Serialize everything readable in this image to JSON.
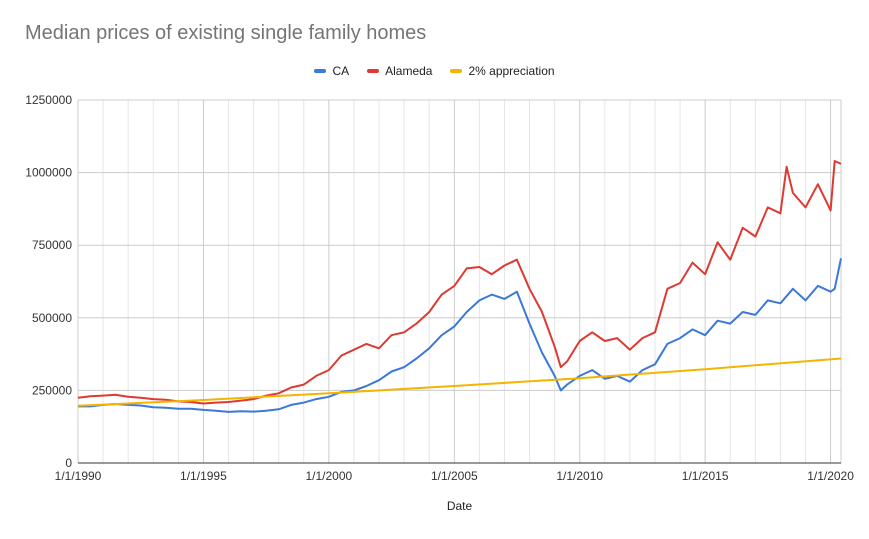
{
  "chart_data": {
    "type": "line",
    "title": "Median prices of existing single family homes",
    "xlabel": "Date",
    "ylabel": "",
    "x_range": [
      "1990-01-01",
      "2020-06-01"
    ],
    "ylim": [
      0,
      1250000
    ],
    "x_tick_labels": [
      "1/1/1990",
      "1/1/1995",
      "1/1/2000",
      "1/1/2005",
      "1/1/2010",
      "1/1/2015",
      "1/1/2020"
    ],
    "y_tick_labels": [
      "0",
      "250000",
      "500000",
      "750000",
      "1000000",
      "1250000"
    ],
    "grid": true,
    "legend_position": "top",
    "series": [
      {
        "name": "CA",
        "color": "#3c78d8",
        "points": [
          [
            "1990-01-01",
            195000
          ],
          [
            "1990-07-01",
            195000
          ],
          [
            "1991-01-01",
            200000
          ],
          [
            "1991-07-01",
            203000
          ],
          [
            "1992-01-01",
            200000
          ],
          [
            "1992-07-01",
            198000
          ],
          [
            "1993-01-01",
            192000
          ],
          [
            "1993-07-01",
            190000
          ],
          [
            "1994-01-01",
            187000
          ],
          [
            "1994-07-01",
            187000
          ],
          [
            "1995-01-01",
            183000
          ],
          [
            "1995-07-01",
            180000
          ],
          [
            "1996-01-01",
            176000
          ],
          [
            "1996-07-01",
            178000
          ],
          [
            "1997-01-01",
            177000
          ],
          [
            "1997-07-01",
            180000
          ],
          [
            "1998-01-01",
            185000
          ],
          [
            "1998-07-01",
            200000
          ],
          [
            "1999-01-01",
            208000
          ],
          [
            "1999-07-01",
            220000
          ],
          [
            "2000-01-01",
            228000
          ],
          [
            "2000-07-01",
            245000
          ],
          [
            "2001-01-01",
            250000
          ],
          [
            "2001-07-01",
            265000
          ],
          [
            "2002-01-01",
            285000
          ],
          [
            "2002-07-01",
            315000
          ],
          [
            "2003-01-01",
            330000
          ],
          [
            "2003-07-01",
            360000
          ],
          [
            "2004-01-01",
            395000
          ],
          [
            "2004-07-01",
            440000
          ],
          [
            "2005-01-01",
            470000
          ],
          [
            "2005-07-01",
            520000
          ],
          [
            "2006-01-01",
            560000
          ],
          [
            "2006-07-01",
            580000
          ],
          [
            "2007-01-01",
            565000
          ],
          [
            "2007-07-01",
            590000
          ],
          [
            "2008-01-01",
            480000
          ],
          [
            "2008-07-01",
            380000
          ],
          [
            "2009-01-01",
            300000
          ],
          [
            "2009-04-01",
            250000
          ],
          [
            "2009-07-01",
            270000
          ],
          [
            "2010-01-01",
            300000
          ],
          [
            "2010-07-01",
            320000
          ],
          [
            "2011-01-01",
            290000
          ],
          [
            "2011-07-01",
            300000
          ],
          [
            "2012-01-01",
            280000
          ],
          [
            "2012-07-01",
            320000
          ],
          [
            "2013-01-01",
            340000
          ],
          [
            "2013-07-01",
            410000
          ],
          [
            "2014-01-01",
            430000
          ],
          [
            "2014-07-01",
            460000
          ],
          [
            "2015-01-01",
            440000
          ],
          [
            "2015-07-01",
            490000
          ],
          [
            "2016-01-01",
            480000
          ],
          [
            "2016-07-01",
            520000
          ],
          [
            "2017-01-01",
            510000
          ],
          [
            "2017-07-01",
            560000
          ],
          [
            "2018-01-01",
            550000
          ],
          [
            "2018-07-01",
            600000
          ],
          [
            "2019-01-01",
            560000
          ],
          [
            "2019-07-01",
            610000
          ],
          [
            "2020-01-01",
            590000
          ],
          [
            "2020-03-01",
            600000
          ],
          [
            "2020-06-01",
            705000
          ]
        ]
      },
      {
        "name": "Alameda",
        "color": "#dc3a32",
        "points": [
          [
            "1990-01-01",
            225000
          ],
          [
            "1990-07-01",
            230000
          ],
          [
            "1991-01-01",
            232000
          ],
          [
            "1991-07-01",
            235000
          ],
          [
            "1992-01-01",
            228000
          ],
          [
            "1992-07-01",
            225000
          ],
          [
            "1993-01-01",
            220000
          ],
          [
            "1993-07-01",
            218000
          ],
          [
            "1994-01-01",
            212000
          ],
          [
            "1994-07-01",
            210000
          ],
          [
            "1995-01-01",
            205000
          ],
          [
            "1995-07-01",
            208000
          ],
          [
            "1996-01-01",
            210000
          ],
          [
            "1996-07-01",
            215000
          ],
          [
            "1997-01-01",
            220000
          ],
          [
            "1997-07-01",
            232000
          ],
          [
            "1998-01-01",
            240000
          ],
          [
            "1998-07-01",
            260000
          ],
          [
            "1999-01-01",
            270000
          ],
          [
            "1999-07-01",
            300000
          ],
          [
            "2000-01-01",
            320000
          ],
          [
            "2000-07-01",
            370000
          ],
          [
            "2001-01-01",
            390000
          ],
          [
            "2001-07-01",
            410000
          ],
          [
            "2002-01-01",
            395000
          ],
          [
            "2002-07-01",
            440000
          ],
          [
            "2003-01-01",
            450000
          ],
          [
            "2003-07-01",
            480000
          ],
          [
            "2004-01-01",
            520000
          ],
          [
            "2004-07-01",
            580000
          ],
          [
            "2005-01-01",
            610000
          ],
          [
            "2005-07-01",
            670000
          ],
          [
            "2006-01-01",
            675000
          ],
          [
            "2006-07-01",
            650000
          ],
          [
            "2007-01-01",
            680000
          ],
          [
            "2007-07-01",
            700000
          ],
          [
            "2008-01-01",
            600000
          ],
          [
            "2008-07-01",
            520000
          ],
          [
            "2009-01-01",
            400000
          ],
          [
            "2009-04-01",
            330000
          ],
          [
            "2009-07-01",
            350000
          ],
          [
            "2010-01-01",
            420000
          ],
          [
            "2010-07-01",
            450000
          ],
          [
            "2011-01-01",
            420000
          ],
          [
            "2011-07-01",
            430000
          ],
          [
            "2012-01-01",
            390000
          ],
          [
            "2012-07-01",
            430000
          ],
          [
            "2013-01-01",
            450000
          ],
          [
            "2013-07-01",
            600000
          ],
          [
            "2014-01-01",
            620000
          ],
          [
            "2014-07-01",
            690000
          ],
          [
            "2015-01-01",
            650000
          ],
          [
            "2015-07-01",
            760000
          ],
          [
            "2016-01-01",
            700000
          ],
          [
            "2016-07-01",
            810000
          ],
          [
            "2017-01-01",
            780000
          ],
          [
            "2017-07-01",
            880000
          ],
          [
            "2018-01-01",
            860000
          ],
          [
            "2018-04-01",
            1020000
          ],
          [
            "2018-07-01",
            930000
          ],
          [
            "2019-01-01",
            880000
          ],
          [
            "2019-07-01",
            960000
          ],
          [
            "2020-01-01",
            870000
          ],
          [
            "2020-03-01",
            1040000
          ],
          [
            "2020-06-01",
            1030000
          ]
        ]
      },
      {
        "name": "2% appreciation",
        "color": "#f4b400",
        "points": [
          [
            "1990-01-01",
            197000
          ],
          [
            "1995-01-01",
            217000
          ],
          [
            "2000-01-01",
            240000
          ],
          [
            "2005-01-01",
            265000
          ],
          [
            "2010-01-01",
            292000
          ],
          [
            "2015-01-01",
            323000
          ],
          [
            "2020-06-01",
            360000
          ]
        ]
      }
    ]
  }
}
